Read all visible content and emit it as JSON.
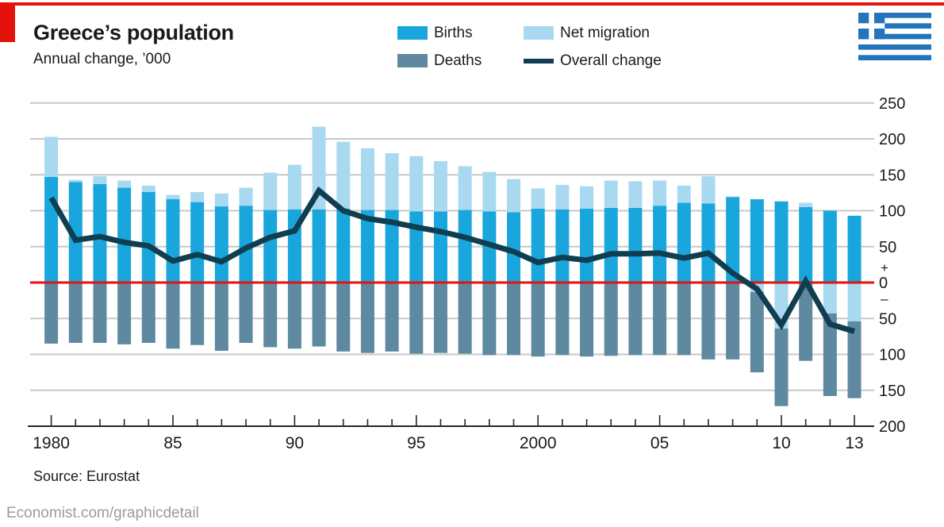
{
  "header": {
    "title": "Greece’s population",
    "subtitle": "Annual change, ’000"
  },
  "legend": {
    "items": [
      {
        "label": "Births",
        "color": "#18a6dc",
        "swatch": "rect"
      },
      {
        "label": "Deaths",
        "color": "#5e89a0",
        "swatch": "rect"
      },
      {
        "label": "Net migration",
        "color": "#a8d9f0",
        "swatch": "rect"
      },
      {
        "label": "Overall change",
        "color": "#0f3e50",
        "swatch": "line"
      }
    ]
  },
  "flag": {
    "name": "greece-flag",
    "blue": "#2474bb",
    "white": "#ffffff"
  },
  "footer": {
    "source": "Source: Eurostat",
    "site": "Economist.com/graphicdetail"
  },
  "chart_data": {
    "type": "combo_stacked_bar_line",
    "title": "Greece's population",
    "subtitle": "Annual change, '000",
    "x": [
      1980,
      1981,
      1982,
      1983,
      1984,
      1985,
      1986,
      1987,
      1988,
      1989,
      1990,
      1991,
      1992,
      1993,
      1994,
      1995,
      1996,
      1997,
      1998,
      1999,
      2000,
      2001,
      2002,
      2003,
      2004,
      2005,
      2006,
      2007,
      2008,
      2009,
      2010,
      2011,
      2012,
      2013
    ],
    "series": [
      {
        "name": "Births",
        "type": "bar",
        "plotted": "above zero",
        "color": "#18a6dc",
        "values": [
          147,
          140,
          137,
          132,
          126,
          116,
          112,
          106,
          107,
          101,
          102,
          102,
          103,
          101,
          101,
          99,
          99,
          101,
          99,
          98,
          103,
          102,
          103,
          104,
          104,
          107,
          111,
          110,
          119,
          116,
          113,
          105,
          100,
          93
        ]
      },
      {
        "name": "Net migration",
        "type": "bar",
        "plotted": "stacked on births when positive, just below zero when negative",
        "color": "#a8d9f0",
        "values": [
          56,
          3,
          11,
          10,
          9,
          6,
          14,
          18,
          25,
          52,
          62,
          115,
          93,
          86,
          79,
          77,
          70,
          61,
          55,
          46,
          28,
          34,
          31,
          38,
          37,
          35,
          24,
          38,
          1,
          -13,
          -64,
          6,
          -43,
          -54
        ]
      },
      {
        "name": "Deaths",
        "type": "bar",
        "plotted": "below zero (negative)",
        "color": "#5e89a0",
        "values": [
          85,
          84,
          84,
          86,
          84,
          92,
          87,
          95,
          84,
          90,
          92,
          89,
          96,
          98,
          96,
          99,
          98,
          99,
          101,
          101,
          103,
          101,
          103,
          102,
          101,
          101,
          101,
          107,
          107,
          112,
          108,
          109,
          115,
          107
        ]
      },
      {
        "name": "Overall change",
        "type": "line",
        "color": "#0f3e50",
        "values": [
          118,
          59,
          64,
          56,
          51,
          30,
          39,
          29,
          48,
          63,
          72,
          128,
          100,
          89,
          84,
          77,
          71,
          63,
          53,
          43,
          28,
          35,
          31,
          40,
          40,
          41,
          34,
          41,
          13,
          -9,
          -59,
          2,
          -58,
          -68
        ]
      }
    ],
    "ylim": [
      -200,
      250
    ],
    "y_gridline_step": 50,
    "grid": true,
    "zero_line_color": "#e3120b",
    "legend_position": "top",
    "y_axis": {
      "side": "right",
      "plus": "+",
      "minus": "–",
      "ticks": [
        {
          "v": 250,
          "label": "250"
        },
        {
          "v": 200,
          "label": "200"
        },
        {
          "v": 150,
          "label": "150"
        },
        {
          "v": 100,
          "label": "100"
        },
        {
          "v": 50,
          "label": "50"
        },
        {
          "v": 0,
          "label": "0"
        },
        {
          "v": -50,
          "label": "50"
        },
        {
          "v": -100,
          "label": "100"
        },
        {
          "v": -150,
          "label": "150"
        },
        {
          "v": -200,
          "label": "200"
        }
      ]
    },
    "x_axis": {
      "labels": [
        {
          "year": 1980,
          "text": "1980"
        },
        {
          "year": 1985,
          "text": "85"
        },
        {
          "year": 1990,
          "text": "90"
        },
        {
          "year": 1995,
          "text": "95"
        },
        {
          "year": 2000,
          "text": "2000"
        },
        {
          "year": 2005,
          "text": "05"
        },
        {
          "year": 2010,
          "text": "10"
        },
        {
          "year": 2013,
          "text": "13"
        }
      ]
    }
  }
}
